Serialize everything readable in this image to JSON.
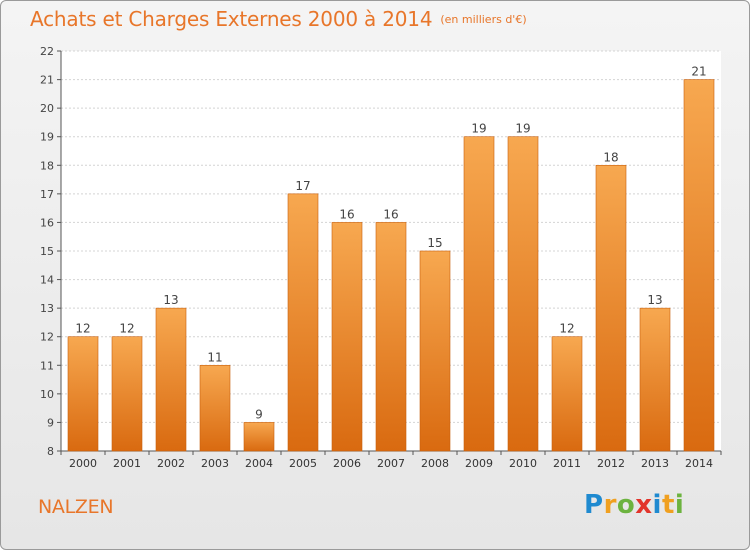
{
  "header": {
    "title": "Achats et Charges Externes 2000 à 2014",
    "unit": "(en milliers d'€)"
  },
  "footer": {
    "town": "NALZEN",
    "brand": "Proxiti",
    "brand_letters": [
      {
        "ch": "P",
        "color": "#1f8ad0"
      },
      {
        "ch": "r",
        "color": "#f0a020"
      },
      {
        "ch": "o",
        "color": "#6cb33f"
      },
      {
        "ch": "x",
        "color": "#e2342b"
      },
      {
        "ch": "i",
        "color": "#1f8ad0"
      },
      {
        "ch": "t",
        "color": "#f0a020"
      },
      {
        "ch": "i",
        "color": "#6cb33f"
      }
    ]
  },
  "colors": {
    "accent": "#e8762a",
    "bar_top": "#f7a850",
    "bar_bottom": "#d96a10"
  },
  "chart_data": {
    "type": "bar",
    "categories": [
      "2000",
      "2001",
      "2002",
      "2003",
      "2004",
      "2005",
      "2006",
      "2007",
      "2008",
      "2009",
      "2010",
      "2011",
      "2012",
      "2013",
      "2014"
    ],
    "values": [
      12,
      12,
      13,
      11,
      9,
      17,
      16,
      16,
      15,
      19,
      19,
      12,
      18,
      13,
      21
    ],
    "ylim": [
      8,
      22
    ],
    "yticks": [
      8,
      9,
      10,
      11,
      12,
      13,
      14,
      15,
      16,
      17,
      18,
      19,
      20,
      21,
      22
    ],
    "grid": true,
    "data_labels": true
  }
}
